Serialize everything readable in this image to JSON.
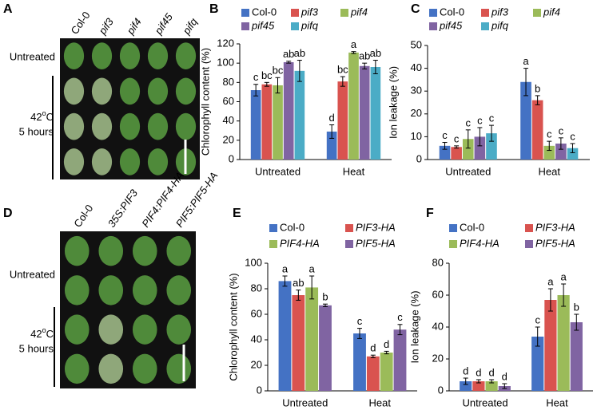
{
  "panels": [
    {
      "label": "A",
      "columns": [
        "Col-0",
        "pif3",
        "pif4",
        "pif45",
        "pifq"
      ],
      "italic_columns": [
        false,
        true,
        true,
        true,
        true
      ],
      "untreated": "Untreated",
      "temp": "42",
      "temp_sup": "o",
      "temp_unit": "C",
      "duration": "5 hours"
    },
    {
      "label": "D",
      "columns": [
        "Col-0",
        "35S:PIF3",
        "PIF4:PIF4-HA",
        "PIF5:PIF5-HA"
      ],
      "italic_columns": [
        false,
        true,
        true,
        true
      ],
      "untreated": "Untreated",
      "temp": "42",
      "temp_sup": "o",
      "temp_unit": "C",
      "duration": "5 hours"
    }
  ],
  "chart_data": [
    {
      "type": "bar",
      "panel": "B",
      "ylabel": "Chlorophyll content (%)",
      "categories": [
        "Untreated",
        "Heat"
      ],
      "ylim": [
        0,
        120
      ],
      "yticks": [
        0,
        20,
        40,
        60,
        80,
        100,
        120
      ],
      "series": [
        {
          "name": "Col-0",
          "italic": false,
          "color": "#4472c4",
          "values": [
            72,
            29
          ],
          "errors": [
            6,
            7
          ],
          "letters": [
            "c",
            "d"
          ]
        },
        {
          "name": "pif3",
          "italic": true,
          "color": "#d9534f",
          "values": [
            78,
            81
          ],
          "errors": [
            2,
            5
          ],
          "letters": [
            "bc",
            "bc"
          ]
        },
        {
          "name": "pif4",
          "italic": true,
          "color": "#9bbb59",
          "values": [
            77,
            111
          ],
          "errors": [
            8,
            1
          ],
          "letters": [
            "bc",
            "a"
          ]
        },
        {
          "name": "pif45",
          "italic": true,
          "color": "#8064a2",
          "values": [
            101,
            97
          ],
          "errors": [
            1,
            3
          ],
          "letters": [
            "ab",
            "ab"
          ]
        },
        {
          "name": "pifq",
          "italic": true,
          "color": "#4bacc6",
          "values": [
            92,
            96
          ],
          "errors": [
            11,
            7
          ],
          "letters": [
            "ab",
            "ab"
          ]
        }
      ]
    },
    {
      "type": "bar",
      "panel": "C",
      "ylabel": "Ion leakage (%)",
      "categories": [
        "Untreated",
        "Heat"
      ],
      "ylim": [
        0,
        50
      ],
      "yticks": [
        0,
        10,
        20,
        30,
        40,
        50
      ],
      "series": [
        {
          "name": "Col-0",
          "italic": false,
          "color": "#4472c4",
          "values": [
            6,
            34
          ],
          "errors": [
            1.5,
            6
          ],
          "letters": [
            "c",
            "a"
          ]
        },
        {
          "name": "pif3",
          "italic": true,
          "color": "#d9534f",
          "values": [
            5.5,
            26
          ],
          "errors": [
            0.5,
            2
          ],
          "letters": [
            "c",
            "b"
          ]
        },
        {
          "name": "pif4",
          "italic": true,
          "color": "#9bbb59",
          "values": [
            9,
            6
          ],
          "errors": [
            4,
            2
          ],
          "letters": [
            "c",
            "c"
          ]
        },
        {
          "name": "pif45",
          "italic": true,
          "color": "#8064a2",
          "values": [
            10,
            7
          ],
          "errors": [
            4,
            2.5
          ],
          "letters": [
            "c",
            "c"
          ]
        },
        {
          "name": "pifq",
          "italic": true,
          "color": "#4bacc6",
          "values": [
            11.5,
            5
          ],
          "errors": [
            3.5,
            2
          ],
          "letters": [
            "c",
            "c"
          ]
        }
      ]
    },
    {
      "type": "bar",
      "panel": "E",
      "ylabel": "Chlorophyll content (%)",
      "categories": [
        "Untreated",
        "Heat"
      ],
      "ylim": [
        0,
        100
      ],
      "yticks": [
        0,
        20,
        40,
        60,
        80,
        100
      ],
      "series": [
        {
          "name": "Col-0",
          "italic": false,
          "color": "#4472c4",
          "values": [
            86,
            45
          ],
          "errors": [
            4,
            4
          ],
          "letters": [
            "a",
            "c"
          ]
        },
        {
          "name": "PIF3-HA",
          "italic": true,
          "color": "#d9534f",
          "values": [
            75,
            27
          ],
          "errors": [
            4,
            1
          ],
          "letters": [
            "ab",
            "d"
          ]
        },
        {
          "name": "PIF4-HA",
          "italic": true,
          "color": "#9bbb59",
          "values": [
            81,
            30
          ],
          "errors": [
            9,
            1
          ],
          "letters": [
            "a",
            "d"
          ]
        },
        {
          "name": "PIF5-HA",
          "italic": true,
          "color": "#8064a2",
          "values": [
            67,
            48
          ],
          "errors": [
            1,
            4
          ],
          "letters": [
            "b",
            "c"
          ]
        }
      ]
    },
    {
      "type": "bar",
      "panel": "F",
      "ylabel": "Ion leakage (%)",
      "categories": [
        "Untreated",
        "Heat"
      ],
      "ylim": [
        0,
        80
      ],
      "yticks": [
        0,
        20,
        40,
        60,
        80
      ],
      "series": [
        {
          "name": "Col-0",
          "italic": false,
          "color": "#4472c4",
          "values": [
            6,
            34
          ],
          "errors": [
            2,
            6
          ],
          "letters": [
            "d",
            "c"
          ]
        },
        {
          "name": "PIF3-HA",
          "italic": true,
          "color": "#d9534f",
          "values": [
            6,
            57
          ],
          "errors": [
            1,
            7
          ],
          "letters": [
            "d",
            "a"
          ]
        },
        {
          "name": "PIF4-HA",
          "italic": true,
          "color": "#9bbb59",
          "values": [
            6,
            60
          ],
          "errors": [
            1,
            7
          ],
          "letters": [
            "d",
            "a"
          ]
        },
        {
          "name": "PIF5-HA",
          "italic": true,
          "color": "#8064a2",
          "values": [
            3,
            43
          ],
          "errors": [
            1.5,
            5
          ],
          "letters": [
            "d",
            "b"
          ]
        }
      ]
    }
  ]
}
